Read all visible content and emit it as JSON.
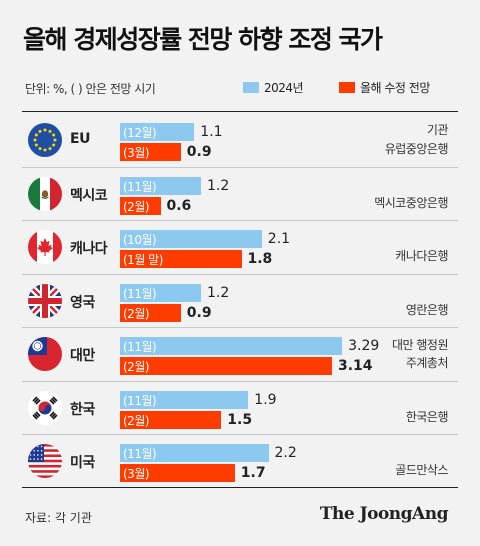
{
  "title": "올해 경제성장률 전망 하향 조정 국가",
  "unit_note": "단위: %, ( ) 안은 전망 시기",
  "source": "자료: 각 기관",
  "logo": "The JoongAng",
  "colors": {
    "y2024": "#8dc8ee",
    "revised": "#ff3c00",
    "background": "#f2f2f2"
  },
  "chart_data": {
    "type": "bar",
    "orientation": "horizontal",
    "legend_position": "top-right",
    "legend": [
      "2024년",
      "올해 수정 전망"
    ],
    "institution_header": "기관",
    "series": [
      {
        "name": "2024년",
        "color": "#8dc8ee",
        "values": [
          1.1,
          1.2,
          2.1,
          1.2,
          3.29,
          1.9,
          2.2
        ],
        "value_labels": [
          "1.1",
          "1.2",
          "2.1",
          "1.2",
          "3.29",
          "1.9",
          "2.2"
        ],
        "period_labels": [
          "(12월)",
          "(11월)",
          "(10월)",
          "(11월)",
          "(11월)",
          "(11월)",
          "(11월)"
        ]
      },
      {
        "name": "올해 수정 전망",
        "color": "#ff3c00",
        "values": [
          0.9,
          0.6,
          1.8,
          0.9,
          3.14,
          1.5,
          1.7
        ],
        "value_labels": [
          "0.9",
          "0.6",
          "1.8",
          "0.9",
          "3.14",
          "1.5",
          "1.7"
        ],
        "period_labels": [
          "(3월)",
          "(2월)",
          "(1월 말)",
          "(2월)",
          "(2월)",
          "(2월)",
          "(3월)"
        ]
      }
    ],
    "countries": [
      {
        "name": "EU",
        "flag": "eu-flag-icon",
        "institution": [
          "유럽중앙은행"
        ]
      },
      {
        "name": "멕시코",
        "flag": "mexico-flag-icon",
        "institution": [
          "멕시코중앙은행"
        ]
      },
      {
        "name": "캐나다",
        "flag": "canada-flag-icon",
        "institution": [
          "캐나다은행"
        ]
      },
      {
        "name": "영국",
        "flag": "uk-flag-icon",
        "institution": [
          "영란은행"
        ]
      },
      {
        "name": "대만",
        "flag": "taiwan-flag-icon",
        "institution": [
          "대만 행정원",
          "주계총처"
        ]
      },
      {
        "name": "한국",
        "flag": "korea-flag-icon",
        "institution": [
          "한국은행"
        ]
      },
      {
        "name": "미국",
        "flag": "us-flag-icon",
        "institution": [
          "골드만삭스"
        ]
      }
    ]
  }
}
